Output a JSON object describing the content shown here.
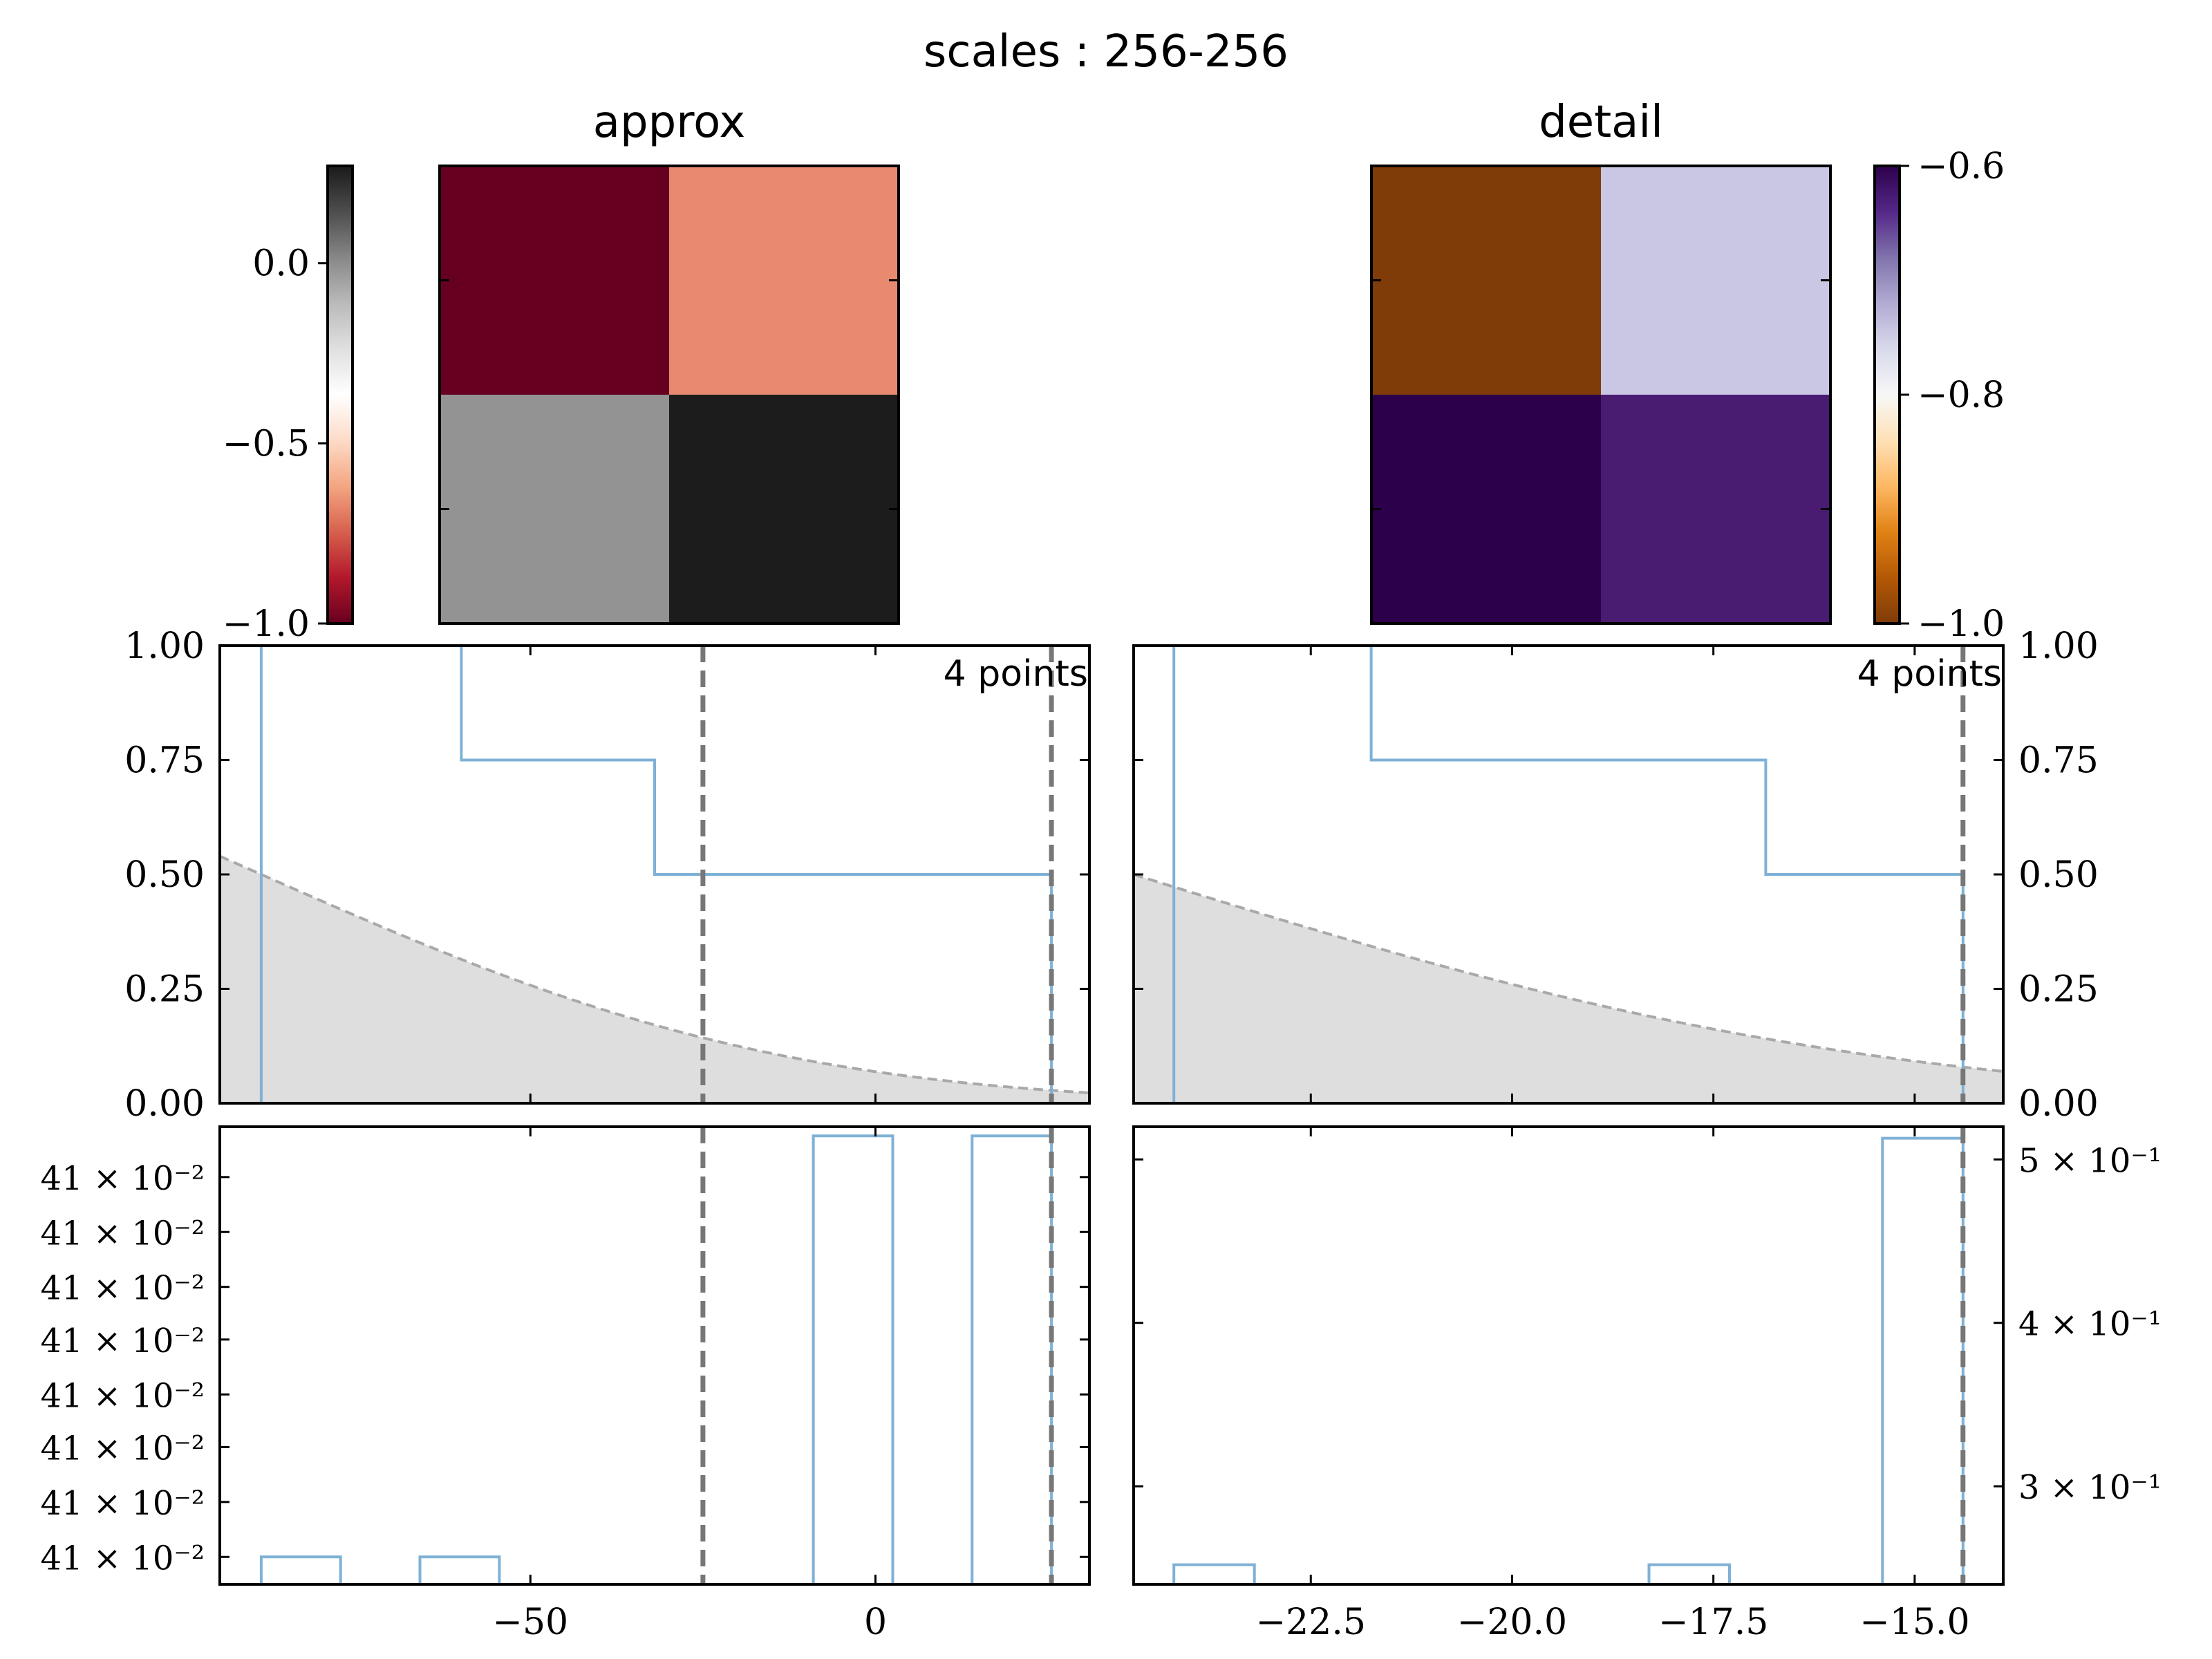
{
  "figure_title": "scales :  256-256",
  "colors": {
    "step": "#7fb1d6",
    "vline": "#777777",
    "gauss_fill": "#dedede",
    "gauss_line": "#a9a9a9"
  },
  "chart_data": [
    {
      "type": "heatmap",
      "name": "approx",
      "title": "approx",
      "cells": [
        [
          -1.0,
          -0.45
        ],
        [
          -0.75,
          0.0
        ]
      ],
      "cell_colors": [
        [
          "#670020",
          "#e88a70"
        ],
        [
          "#939393",
          "#1c1c1c"
        ]
      ],
      "colorbar": {
        "side": "left",
        "cmap": "RdGy",
        "vmin": -1.0,
        "vmax": 0.27,
        "ticks": [
          0.0,
          -0.5,
          -1.0
        ],
        "tick_labels": [
          "0.0",
          "−0.5",
          "−1.0"
        ]
      }
    },
    {
      "type": "heatmap",
      "name": "detail",
      "title": "detail",
      "cells": [
        [
          -1.0,
          -0.7
        ],
        [
          -0.6,
          -0.62
        ]
      ],
      "cell_colors": [
        [
          "#7f3b08",
          "#c9c7e3"
        ],
        [
          "#2d004b",
          "#491b71"
        ]
      ],
      "colorbar": {
        "side": "right",
        "cmap": "PuOr",
        "vmin": -1.0,
        "vmax": -0.6,
        "ticks": [
          -0.6,
          -0.8,
          -1.0
        ],
        "tick_labels": [
          "−0.6",
          "−0.8",
          "−1.0"
        ]
      }
    },
    {
      "type": "line",
      "name": "approx-cdf",
      "annotation": "4 points",
      "xlim": [
        -95,
        31
      ],
      "ylim": [
        0,
        1
      ],
      "yticks": [
        0.0,
        0.25,
        0.5,
        0.75,
        1.0
      ],
      "ytick_labels": [
        "0.00",
        "0.25",
        "0.50",
        "0.75",
        "1.00"
      ],
      "xticks": [
        -50,
        0
      ],
      "ecdf": [
        [
          -89,
          0
        ],
        [
          -89,
          1.0
        ],
        [
          -60,
          1.0
        ],
        [
          -60,
          0.75
        ],
        [
          -32,
          0.75
        ],
        [
          -32,
          0.5
        ],
        [
          25.5,
          0.5
        ],
        [
          25.5,
          0
        ]
      ],
      "vlines": [
        -25,
        25.5
      ],
      "gaussian": {
        "mean": -89,
        "sigma": 60
      }
    },
    {
      "type": "line",
      "name": "detail-cdf",
      "annotation": "4 points",
      "xlim": [
        -24.7,
        -13.9
      ],
      "ylim": [
        0,
        1
      ],
      "yticks": [
        0.0,
        0.25,
        0.5,
        0.75,
        1.0
      ],
      "ytick_labels": [
        "0.00",
        "0.25",
        "0.50",
        "0.75",
        "1.00"
      ],
      "xticks": [
        -22.5,
        -20.0,
        -17.5,
        -15.0
      ],
      "ecdf": [
        [
          -24.2,
          0
        ],
        [
          -24.2,
          1.0
        ],
        [
          -21.75,
          1.0
        ],
        [
          -21.75,
          0.75
        ],
        [
          -16.85,
          0.75
        ],
        [
          -16.85,
          0.5
        ],
        [
          -14.4,
          0.5
        ],
        [
          -14.4,
          0
        ]
      ],
      "vlines": [
        -14.4
      ],
      "gaussian": {
        "mean": -24.7,
        "sigma": 7.3
      }
    },
    {
      "type": "bar",
      "name": "approx-hist",
      "xlim": [
        -95,
        31
      ],
      "ylim": [
        0,
        1
      ],
      "xticks": [
        -50,
        0
      ],
      "xtick_labels": [
        "−50",
        "0"
      ],
      "ytick_labels": [
        "41 × 10⁻²",
        "41 × 10⁻²",
        "41 × 10⁻²",
        "41 × 10⁻²",
        "41 × 10⁻²",
        "41 × 10⁻²",
        "41 × 10⁻²",
        "41 × 10⁻²"
      ],
      "ytick_fracs": [
        0.89,
        0.77,
        0.65,
        0.535,
        0.415,
        0.3,
        0.18,
        0.06
      ],
      "bars": [
        {
          "x0": -89,
          "x1": -77.5,
          "value": 0.06
        },
        {
          "x0": -66,
          "x1": -54.5,
          "value": 0.06
        },
        {
          "x0": -9,
          "x1": 2.5,
          "value": 0.98
        },
        {
          "x0": 14,
          "x1": 25.5,
          "value": 0.98
        }
      ],
      "vlines": [
        -25,
        25.5
      ]
    },
    {
      "type": "bar",
      "name": "detail-hist",
      "xlim": [
        -24.7,
        -13.9
      ],
      "ylim": [
        0.24,
        0.52
      ],
      "xticks": [
        -22.5,
        -20.0,
        -17.5,
        -15.0
      ],
      "xtick_labels": [
        "−22.5",
        "−20.0",
        "−17.5",
        "−15.0"
      ],
      "yticks": [
        0.5,
        0.4,
        0.3
      ],
      "ytick_labels": [
        "5 × 10⁻¹",
        "4 × 10⁻¹",
        "3 × 10⁻¹"
      ],
      "bars": [
        {
          "x0": -24.2,
          "x1": -23.2,
          "value": 0.252
        },
        {
          "x0": -18.3,
          "x1": -17.3,
          "value": 0.252
        },
        {
          "x0": -15.4,
          "x1": -14.4,
          "value": 0.513
        }
      ],
      "vlines": [
        -14.4
      ]
    }
  ]
}
